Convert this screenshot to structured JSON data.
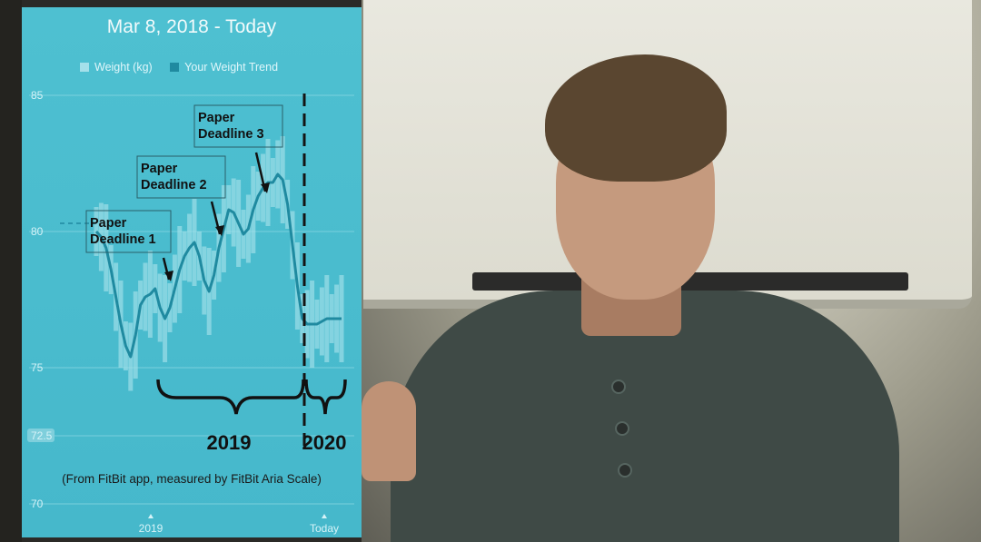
{
  "header": {
    "title": "Mar 8, 2018 - Today"
  },
  "legend": {
    "weight_label": "Weight (kg)",
    "trend_label": "Your Weight Trend"
  },
  "colors": {
    "panel_bg": "#4ec0d1",
    "trend": "#1f8aa0",
    "weight_bar": "#a4e0ea",
    "annotation": "#1c1c1c"
  },
  "icons": [
    "weight-swatch-icon",
    "trend-swatch-icon",
    "arrow-icon",
    "brace-icon",
    "dashed-divider-icon"
  ],
  "photo": {
    "description_icon": "presenter-photo-icon"
  },
  "chart_data": {
    "type": "line",
    "title": "Mar 8, 2018 - Today",
    "xlabel": "",
    "ylabel": "",
    "y_ticks": [
      "85",
      "80",
      "75",
      "72.5",
      "70"
    ],
    "ylim": [
      70,
      85
    ],
    "x_ticks": [
      "2019",
      "Today"
    ],
    "grid": true,
    "legend_position": "top",
    "series": [
      {
        "name": "Your Weight Trend",
        "x": [
          0,
          2,
          4,
          6,
          8,
          10,
          12,
          14,
          16,
          18,
          20,
          22,
          24,
          26,
          28,
          30,
          32,
          34,
          36,
          38,
          40,
          42,
          44,
          46,
          48,
          50,
          52,
          54,
          56,
          58,
          60,
          62,
          64,
          66,
          68,
          70,
          72,
          74,
          76,
          78,
          80,
          82,
          84,
          86,
          88,
          90,
          92,
          94,
          96,
          98,
          100
        ],
        "y": [
          80.0,
          79.8,
          79.4,
          78.6,
          77.6,
          76.6,
          75.8,
          75.4,
          76.2,
          77.3,
          77.6,
          77.7,
          77.9,
          77.2,
          76.8,
          77.2,
          77.9,
          78.6,
          79.1,
          79.4,
          79.6,
          79.1,
          78.2,
          77.8,
          78.4,
          79.4,
          80.1,
          80.8,
          80.7,
          80.3,
          79.9,
          80.1,
          80.8,
          81.3,
          81.6,
          81.8,
          81.8,
          82.1,
          81.9,
          81.0,
          79.5,
          78.0,
          76.8,
          76.6,
          76.6,
          76.6,
          76.7,
          76.8,
          76.8,
          76.8,
          76.8
        ]
      }
    ],
    "annotations": [
      {
        "text": "Paper\nDeadline 1",
        "x": 18,
        "y": 77.6
      },
      {
        "text": "Paper\nDeadline 2",
        "x": 32,
        "y": 79.6
      },
      {
        "text": "Paper\nDeadline 3",
        "x": 41,
        "y": 81.0
      }
    ],
    "period_labels": [
      "2019",
      "2020"
    ],
    "footnote": "(From FitBit app, measured by FitBit Aria Scale)"
  }
}
